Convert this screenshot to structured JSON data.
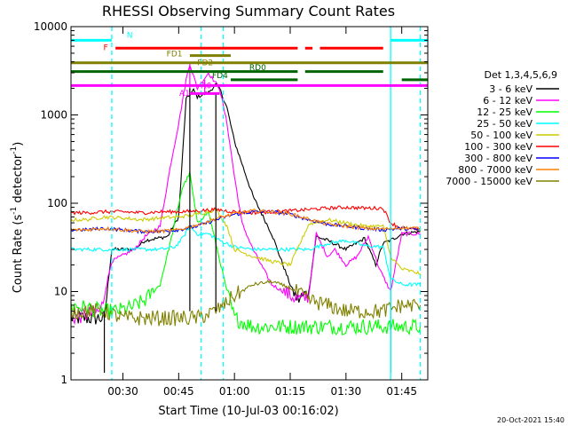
{
  "chart_data": {
    "type": "line",
    "title": "RHESSI Observing Summary Count Rates",
    "xlabel": "Start Time (10-Jul-03 00:16:02)",
    "ylabel": "Count Rate (s⁻¹ detector⁻¹)",
    "ylabel_main": "Count Rate (s",
    "ylabel_mid": " detector",
    "ylabel_end": ")",
    "ylabel_sup": "-1",
    "yscale": "log",
    "ylim": [
      1,
      10000
    ],
    "xlim": [
      "00:16:02",
      "01:52:00"
    ],
    "x_ticks": [
      "00:30",
      "00:45",
      "01:00",
      "01:15",
      "01:30",
      "01:45"
    ],
    "y_ticks": [
      "1",
      "10",
      "100",
      "1000",
      "10000"
    ],
    "timestamp": "20-Oct-2021 15:40",
    "legend_title": "Det 1,3,4,5,6,9",
    "legend_placement": "right",
    "series": [
      {
        "name": "3 - 6 keV",
        "color": "#000000",
        "points": [
          [
            "00:16",
            5
          ],
          [
            "00:25",
            5
          ],
          [
            "00:27",
            30
          ],
          [
            "00:33",
            30
          ],
          [
            "00:36",
            38
          ],
          [
            "00:42",
            42
          ],
          [
            "00:45",
            70
          ],
          [
            "00:47",
            1500
          ],
          [
            "00:48",
            1700
          ],
          [
            "00:49",
            1900
          ],
          [
            "00:50",
            1600
          ],
          [
            "00:53",
            1800
          ],
          [
            "00:55",
            2200
          ],
          [
            "00:56",
            2000
          ],
          [
            "00:58",
            1200
          ],
          [
            "01:00",
            500
          ],
          [
            "01:05",
            120
          ],
          [
            "01:10",
            45
          ],
          [
            "01:15",
            12
          ],
          [
            "01:17",
            8
          ],
          [
            "01:20",
            10
          ],
          [
            "01:22",
            42
          ],
          [
            "01:25",
            38
          ],
          [
            "01:30",
            30
          ],
          [
            "01:35",
            40
          ],
          [
            "01:38",
            20
          ],
          [
            "01:40",
            35
          ],
          [
            "01:43",
            40
          ],
          [
            "01:45",
            45
          ],
          [
            "01:50",
            48
          ]
        ]
      },
      {
        "name": "6 - 12 keV",
        "color": "#ff00ff",
        "points": [
          [
            "00:16",
            5
          ],
          [
            "00:24",
            6
          ],
          [
            "00:27",
            22
          ],
          [
            "00:33",
            30
          ],
          [
            "00:36",
            42
          ],
          [
            "00:40",
            55
          ],
          [
            "00:43",
            300
          ],
          [
            "00:45",
            800
          ],
          [
            "00:47",
            2500
          ],
          [
            "00:48",
            3800
          ],
          [
            "00:50",
            2000
          ],
          [
            "00:53",
            3000
          ],
          [
            "00:56",
            2000
          ],
          [
            "00:58",
            800
          ],
          [
            "01:00",
            200
          ],
          [
            "01:02",
            60
          ],
          [
            "01:05",
            30
          ],
          [
            "01:10",
            12
          ],
          [
            "01:15",
            9
          ],
          [
            "01:18",
            8
          ],
          [
            "01:20",
            9
          ],
          [
            "01:22",
            45
          ],
          [
            "01:25",
            25
          ],
          [
            "01:27",
            30
          ],
          [
            "01:30",
            20
          ],
          [
            "01:33",
            25
          ],
          [
            "01:36",
            42
          ],
          [
            "01:39",
            18
          ],
          [
            "01:42",
            10
          ],
          [
            "01:45",
            45
          ],
          [
            "01:50",
            45
          ]
        ]
      },
      {
        "name": "12 - 25 keV",
        "color": "#00ff00",
        "points": [
          [
            "00:16",
            7
          ],
          [
            "00:25",
            6
          ],
          [
            "00:28",
            6
          ],
          [
            "00:32",
            6.5
          ],
          [
            "00:36",
            8
          ],
          [
            "00:40",
            12
          ],
          [
            "00:43",
            40
          ],
          [
            "00:46",
            150
          ],
          [
            "00:48",
            220
          ],
          [
            "00:50",
            60
          ],
          [
            "00:53",
            80
          ],
          [
            "00:55",
            35
          ],
          [
            "00:58",
            10
          ],
          [
            "01:00",
            5
          ],
          [
            "01:05",
            4
          ],
          [
            "01:10",
            4
          ],
          [
            "01:15",
            4
          ],
          [
            "01:20",
            4
          ],
          [
            "01:25",
            4
          ],
          [
            "01:30",
            4
          ],
          [
            "01:35",
            4
          ],
          [
            "01:40",
            4
          ],
          [
            "01:45",
            4
          ],
          [
            "01:50",
            4
          ]
        ]
      },
      {
        "name": "25 - 50 keV",
        "color": "#00ffff",
        "points": [
          [
            "00:16",
            30
          ],
          [
            "00:20",
            30
          ],
          [
            "00:30",
            30
          ],
          [
            "00:36",
            30
          ],
          [
            "00:40",
            30
          ],
          [
            "00:44",
            32
          ],
          [
            "00:46",
            40
          ],
          [
            "00:48",
            55
          ],
          [
            "00:50",
            45
          ],
          [
            "00:53",
            45
          ],
          [
            "00:56",
            38
          ],
          [
            "01:00",
            32
          ],
          [
            "01:05",
            30
          ],
          [
            "01:10",
            30
          ],
          [
            "01:15",
            30
          ],
          [
            "01:20",
            30
          ],
          [
            "01:25",
            35
          ],
          [
            "01:30",
            38
          ],
          [
            "01:35",
            33
          ],
          [
            "01:40",
            32
          ],
          [
            "01:42",
            14
          ],
          [
            "01:45",
            12
          ],
          [
            "01:50",
            12
          ]
        ]
      },
      {
        "name": "50 - 100 keV",
        "color": "#cccc00",
        "points": [
          [
            "00:16",
            65
          ],
          [
            "00:20",
            65
          ],
          [
            "00:25",
            70
          ],
          [
            "00:30",
            68
          ],
          [
            "00:35",
            65
          ],
          [
            "00:40",
            68
          ],
          [
            "00:45",
            70
          ],
          [
            "00:50",
            75
          ],
          [
            "00:55",
            85
          ],
          [
            "00:58",
            55
          ],
          [
            "01:00",
            30
          ],
          [
            "01:05",
            25
          ],
          [
            "01:10",
            22
          ],
          [
            "01:15",
            20
          ],
          [
            "01:20",
            58
          ],
          [
            "01:25",
            65
          ],
          [
            "01:30",
            60
          ],
          [
            "01:35",
            55
          ],
          [
            "01:40",
            55
          ],
          [
            "01:42",
            25
          ],
          [
            "01:45",
            18
          ],
          [
            "01:50",
            16
          ]
        ]
      },
      {
        "name": "100 - 300 keV",
        "color": "#ff0000",
        "points": [
          [
            "00:16",
            78
          ],
          [
            "00:20",
            78
          ],
          [
            "00:25",
            80
          ],
          [
            "00:30",
            80
          ],
          [
            "00:35",
            78
          ],
          [
            "00:40",
            80
          ],
          [
            "00:45",
            80
          ],
          [
            "00:50",
            82
          ],
          [
            "00:55",
            85
          ],
          [
            "01:00",
            80
          ],
          [
            "01:05",
            78
          ],
          [
            "01:10",
            80
          ],
          [
            "01:15",
            82
          ],
          [
            "01:20",
            85
          ],
          [
            "01:25",
            88
          ],
          [
            "01:30",
            90
          ],
          [
            "01:35",
            88
          ],
          [
            "01:40",
            88
          ],
          [
            "01:42",
            60
          ],
          [
            "01:45",
            52
          ],
          [
            "01:50",
            50
          ]
        ]
      },
      {
        "name": "300 - 800 keV",
        "color": "#0000ff",
        "points": [
          [
            "00:16",
            50
          ],
          [
            "00:20",
            50
          ],
          [
            "00:25",
            52
          ],
          [
            "00:30",
            50
          ],
          [
            "00:35",
            48
          ],
          [
            "00:40",
            48
          ],
          [
            "00:45",
            50
          ],
          [
            "00:50",
            55
          ],
          [
            "00:55",
            65
          ],
          [
            "01:00",
            75
          ],
          [
            "01:05",
            80
          ],
          [
            "01:10",
            80
          ],
          [
            "01:15",
            75
          ],
          [
            "01:20",
            65
          ],
          [
            "01:25",
            58
          ],
          [
            "01:30",
            55
          ],
          [
            "01:35",
            52
          ],
          [
            "01:40",
            50
          ],
          [
            "01:45",
            52
          ],
          [
            "01:50",
            50
          ]
        ]
      },
      {
        "name": "800 - 7000 keV",
        "color": "#ff8000",
        "points": [
          [
            "00:16",
            50
          ],
          [
            "00:20",
            50
          ],
          [
            "00:25",
            52
          ],
          [
            "00:30",
            50
          ],
          [
            "00:35",
            48
          ],
          [
            "00:40",
            48
          ],
          [
            "00:45",
            50
          ],
          [
            "00:50",
            57
          ],
          [
            "00:55",
            67
          ],
          [
            "01:00",
            76
          ],
          [
            "01:05",
            82
          ],
          [
            "01:10",
            80
          ],
          [
            "01:15",
            76
          ],
          [
            "01:20",
            66
          ],
          [
            "01:25",
            58
          ],
          [
            "01:30",
            55
          ],
          [
            "01:35",
            52
          ],
          [
            "01:40",
            51
          ],
          [
            "01:45",
            53
          ],
          [
            "01:50",
            52
          ]
        ]
      },
      {
        "name": "7000 - 15000 keV",
        "color": "#808000",
        "points": [
          [
            "00:16",
            6
          ],
          [
            "00:20",
            6
          ],
          [
            "00:25",
            6
          ],
          [
            "00:30",
            5
          ],
          [
            "00:35",
            5
          ],
          [
            "00:40",
            5
          ],
          [
            "00:45",
            5
          ],
          [
            "00:50",
            5
          ],
          [
            "00:55",
            6
          ],
          [
            "01:00",
            9
          ],
          [
            "01:05",
            12
          ],
          [
            "01:10",
            13
          ],
          [
            "01:15",
            11
          ],
          [
            "01:20",
            8
          ],
          [
            "01:25",
            7
          ],
          [
            "01:30",
            6
          ],
          [
            "01:35",
            6
          ],
          [
            "01:40",
            6
          ],
          [
            "01:45",
            7
          ],
          [
            "01:50",
            7
          ]
        ]
      }
    ],
    "spikes": [
      {
        "t": "00:48",
        "color": "#ff00ff",
        "y1": 1700,
        "y2": 3800
      },
      {
        "t": "00:52",
        "color": "#ff00ff",
        "y1": 1700,
        "y2": 2500
      },
      {
        "t": "00:48",
        "color": "#000000",
        "y1": 6,
        "y2": 2000
      },
      {
        "t": "00:55",
        "color": "#000000",
        "y1": 6,
        "y2": 1800
      },
      {
        "t": "00:25",
        "color": "#000000",
        "y1": 1.2,
        "y2": 6
      },
      {
        "t": "01:42",
        "color": "#000000",
        "y1": 1.2,
        "y2": 40
      }
    ],
    "vlines": [
      {
        "t": "00:27",
        "color": "#00ffff",
        "style": "dash"
      },
      {
        "t": "00:51",
        "color": "#00ffff",
        "style": "dash"
      },
      {
        "t": "00:57",
        "color": "#00ffff",
        "style": "dash"
      },
      {
        "t": "01:42",
        "color": "#00ffff",
        "style": "solid"
      },
      {
        "t": "01:50",
        "color": "#00ffff",
        "style": "dash"
      }
    ],
    "flag_bars": [
      {
        "label": "N",
        "color": "#00ffff",
        "y": 7000,
        "segments": [
          [
            "00:16",
            "00:27"
          ],
          [
            "01:42",
            "01:52"
          ]
        ]
      },
      {
        "label": "F",
        "color": "#ff0000",
        "y": 5700,
        "segments": [
          [
            "00:28",
            "01:17"
          ],
          [
            "01:19",
            "01:21"
          ],
          [
            "01:23",
            "01:40"
          ]
        ]
      },
      {
        "label": "FD1",
        "color": "#808000",
        "y": 4700,
        "segments": [
          [
            "00:48",
            "00:59"
          ]
        ]
      },
      {
        "label": "FD2",
        "color": "#808000",
        "y": 3900,
        "segments": [
          [
            "00:16",
            "01:52"
          ]
        ]
      },
      {
        "label": "",
        "color": "#006400",
        "y": 3100,
        "segments": [
          [
            "00:16",
            "01:17"
          ],
          [
            "01:19",
            "01:40"
          ]
        ]
      },
      {
        "label": "RD0",
        "color": "#006400",
        "y": 3100,
        "segments": []
      },
      {
        "label": "FD4",
        "color": "#006400",
        "y": 2500,
        "segments": [
          [
            "00:59",
            "01:17"
          ],
          [
            "01:45",
            "01:52"
          ]
        ]
      },
      {
        "label": "A0",
        "color": "#ff00ff",
        "y": 2150,
        "segments": [
          [
            "00:16",
            "01:52"
          ]
        ]
      },
      {
        "label": "A1",
        "color": "#ff00ff",
        "y": 1750,
        "segments": [
          [
            "00:48",
            "00:56"
          ]
        ]
      }
    ]
  }
}
